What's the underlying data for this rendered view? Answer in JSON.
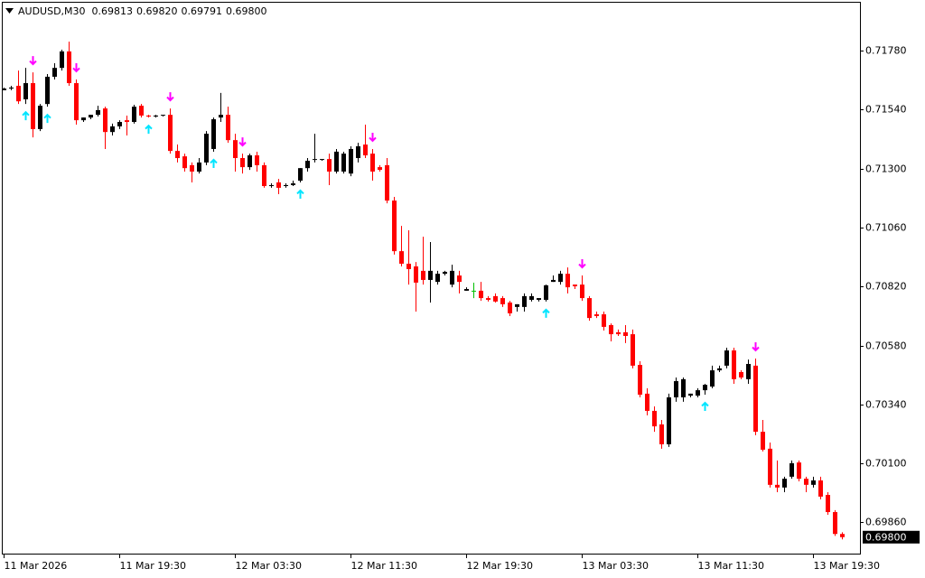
{
  "chart_data": {
    "type": "candlestick",
    "symbol": "AUDUSD,M30",
    "quote_labels": [
      "0.69813",
      "0.69820",
      "0.69791",
      "0.69800"
    ],
    "categories": [
      "11 Mar 2026",
      null,
      null,
      null,
      null,
      null,
      null,
      null,
      null,
      null,
      null,
      null,
      null,
      null,
      null,
      null,
      "11 Mar 19:30",
      null,
      null,
      null,
      null,
      null,
      null,
      null,
      null,
      null,
      null,
      null,
      null,
      null,
      null,
      null,
      "12 Mar 03:30",
      null,
      null,
      null,
      null,
      null,
      null,
      null,
      null,
      null,
      null,
      null,
      null,
      null,
      null,
      null,
      "12 Mar 11:30",
      null,
      null,
      null,
      null,
      null,
      null,
      null,
      null,
      null,
      null,
      null,
      null,
      null,
      null,
      null,
      "12 Mar 19:30",
      null,
      null,
      null,
      null,
      null,
      null,
      null,
      null,
      null,
      null,
      null,
      null,
      null,
      null,
      null,
      "13 Mar 03:30",
      null,
      null,
      null,
      null,
      null,
      null,
      null,
      null,
      null,
      null,
      null,
      null,
      null,
      null,
      null,
      "13 Mar 11:30",
      null,
      null,
      null,
      null,
      null,
      null,
      null,
      null,
      null,
      null,
      null,
      null,
      null,
      null,
      null,
      "13 Mar 19:30",
      null,
      null,
      null,
      null
    ],
    "ohlc": [
      [
        0.71619,
        0.7163,
        0.71619,
        0.71626
      ],
      [
        0.71626,
        0.71637,
        0.71619,
        0.7163
      ],
      [
        0.71637,
        0.71699,
        0.71563,
        0.71574
      ],
      [
        0.71582,
        0.7171,
        0.71563,
        0.71648
      ],
      [
        0.71648,
        0.71692,
        0.71427,
        0.71461
      ],
      [
        0.71461,
        0.71563,
        0.71453,
        0.71556
      ],
      [
        0.71563,
        0.71685,
        0.71552,
        0.71674
      ],
      [
        0.71674,
        0.71729,
        0.71663,
        0.7171
      ],
      [
        0.7171,
        0.71784,
        0.71699,
        0.71777
      ],
      [
        0.71777,
        0.71817,
        0.71637,
        0.71648
      ],
      [
        0.71648,
        0.71663,
        0.71479,
        0.71497
      ],
      [
        0.71497,
        0.71508,
        0.7149,
        0.71508
      ],
      [
        0.71508,
        0.71519,
        0.71501,
        0.71519
      ],
      [
        0.71519,
        0.71556,
        0.71512,
        0.71538
      ],
      [
        0.71545,
        0.71552,
        0.7138,
        0.71449
      ],
      [
        0.71449,
        0.71483,
        0.71435,
        0.71472
      ],
      [
        0.71472,
        0.71497,
        0.71461,
        0.7149
      ],
      [
        0.71497,
        0.71516,
        0.71435,
        0.7149
      ],
      [
        0.7149,
        0.7156,
        0.71483,
        0.71552
      ],
      [
        0.71556,
        0.71563,
        0.71508,
        0.71516
      ],
      [
        0.71516,
        0.71519,
        0.71508,
        0.71512
      ],
      [
        0.71512,
        0.71519,
        0.71508,
        0.71516
      ],
      [
        0.71516,
        0.71519,
        0.71512,
        0.71519
      ],
      [
        0.71519,
        0.71545,
        0.71361,
        0.71372
      ],
      [
        0.71372,
        0.71398,
        0.71325,
        0.71343
      ],
      [
        0.7135,
        0.71361,
        0.71288,
        0.71302
      ],
      [
        0.71314,
        0.71325,
        0.71244,
        0.71288
      ],
      [
        0.71288,
        0.71343,
        0.7128,
        0.71325
      ],
      [
        0.71325,
        0.71453,
        0.71314,
        0.71442
      ],
      [
        0.7138,
        0.71508,
        0.71369,
        0.71501
      ],
      [
        0.71508,
        0.71608,
        0.7149,
        0.71519
      ],
      [
        0.71519,
        0.71552,
        0.71405,
        0.71416
      ],
      [
        0.71416,
        0.71442,
        0.71288,
        0.71343
      ],
      [
        0.71343,
        0.71361,
        0.7128,
        0.71306
      ],
      [
        0.71306,
        0.71361,
        0.71295,
        0.71354
      ],
      [
        0.71354,
        0.71369,
        0.71288,
        0.71314
      ],
      [
        0.71314,
        0.71325,
        0.71222,
        0.71229
      ],
      [
        0.71229,
        0.7124,
        0.71222,
        0.71233
      ],
      [
        0.71244,
        0.71258,
        0.71196,
        0.71222
      ],
      [
        0.71229,
        0.7124,
        0.71222,
        0.71233
      ],
      [
        0.71233,
        0.71251,
        0.71229,
        0.7124
      ],
      [
        0.71251,
        0.71302,
        0.71244,
        0.71302
      ],
      [
        0.71302,
        0.71343,
        0.71288,
        0.71332
      ],
      [
        0.71336,
        0.71442,
        0.71325,
        0.71339
      ],
      [
        0.71336,
        0.71339,
        0.71332,
        0.71339
      ],
      [
        0.71339,
        0.71361,
        0.71233,
        0.71288
      ],
      [
        0.71288,
        0.7138,
        0.7128,
        0.71369
      ],
      [
        0.71288,
        0.71369,
        0.7128,
        0.71361
      ],
      [
        0.7128,
        0.71391,
        0.71269,
        0.7138
      ],
      [
        0.71343,
        0.71405,
        0.71325,
        0.71391
      ],
      [
        0.71398,
        0.71479,
        0.71343,
        0.71354
      ],
      [
        0.71361,
        0.7138,
        0.71251,
        0.71288
      ],
      [
        0.71306,
        0.71314,
        0.71288,
        0.71295
      ],
      [
        0.71314,
        0.71343,
        0.71159,
        0.7117
      ],
      [
        0.7117,
        0.71185,
        0.7095,
        0.70964
      ],
      [
        0.70964,
        0.71067,
        0.70902,
        0.70913
      ],
      [
        0.70913,
        0.71049,
        0.70828,
        0.70891
      ],
      [
        0.70902,
        0.7092,
        0.70718,
        0.70836
      ],
      [
        0.70884,
        0.71023,
        0.70828,
        0.70847
      ],
      [
        0.70847,
        0.71001,
        0.70755,
        0.70884
      ],
      [
        0.70839,
        0.70884,
        0.70828,
        0.70872
      ],
      [
        0.70872,
        0.70884,
        0.70865,
        0.7088
      ],
      [
        0.70828,
        0.70909,
        0.70817,
        0.70884
      ],
      [
        0.70865,
        0.70884,
        0.70792,
        0.70839
      ],
      [
        0.70803,
        0.70817,
        0.70803,
        0.7081
      ],
      [
        0.70803,
        0.70836,
        0.70773,
        0.70803
      ],
      [
        0.70803,
        0.70839,
        0.70762,
        0.70773
      ],
      [
        0.70773,
        0.70781,
        0.70759,
        0.70766
      ],
      [
        0.70781,
        0.70792,
        0.70755,
        0.70759
      ],
      [
        0.70773,
        0.70781,
        0.70737,
        0.70748
      ],
      [
        0.70755,
        0.70762,
        0.707,
        0.70711
      ],
      [
        0.70737,
        0.70748,
        0.70718,
        0.70748
      ],
      [
        0.70737,
        0.70792,
        0.70718,
        0.70781
      ],
      [
        0.70766,
        0.70792,
        0.70759,
        0.70781
      ],
      [
        0.70766,
        0.70773,
        0.70759,
        0.70773
      ],
      [
        0.70766,
        0.70828,
        0.70759,
        0.70825
      ],
      [
        0.70839,
        0.70865,
        0.70839,
        0.70847
      ],
      [
        0.70839,
        0.70884,
        0.70828,
        0.70872
      ],
      [
        0.70872,
        0.70898,
        0.70792,
        0.70817
      ],
      [
        0.70828,
        0.70828,
        0.7081,
        0.70821
      ],
      [
        0.70828,
        0.70865,
        0.70762,
        0.70773
      ],
      [
        0.70773,
        0.70781,
        0.70681,
        0.70692
      ],
      [
        0.70707,
        0.70718,
        0.70692,
        0.707
      ],
      [
        0.70707,
        0.70718,
        0.70641,
        0.70656
      ],
      [
        0.70663,
        0.7067,
        0.70597,
        0.70626
      ],
      [
        0.70634,
        0.70645,
        0.70619,
        0.70626
      ],
      [
        0.70634,
        0.70663,
        0.7059,
        0.70619
      ],
      [
        0.70626,
        0.70645,
        0.70487,
        0.70498
      ],
      [
        0.70501,
        0.70516,
        0.70369,
        0.7038
      ],
      [
        0.70384,
        0.70406,
        0.70296,
        0.70314
      ],
      [
        0.70314,
        0.70332,
        0.70229,
        0.70251
      ],
      [
        0.70259,
        0.70277,
        0.7016,
        0.70178
      ],
      [
        0.70178,
        0.70384,
        0.70167,
        0.70369
      ],
      [
        0.70369,
        0.7045,
        0.70351,
        0.70435
      ],
      [
        0.70369,
        0.7045,
        0.70351,
        0.70443
      ],
      [
        0.70376,
        0.70384,
        0.70369,
        0.70384
      ],
      [
        0.70376,
        0.70406,
        0.70369,
        0.70398
      ],
      [
        0.70398,
        0.70424,
        0.7038,
        0.7042
      ],
      [
        0.70413,
        0.70498,
        0.70406,
        0.70479
      ],
      [
        0.70479,
        0.70498,
        0.70472,
        0.70487
      ],
      [
        0.70498,
        0.70571,
        0.70487,
        0.7056
      ],
      [
        0.7056,
        0.70571,
        0.70424,
        0.70443
      ],
      [
        0.70472,
        0.70479,
        0.70443,
        0.7045
      ],
      [
        0.70443,
        0.70523,
        0.70424,
        0.70505
      ],
      [
        0.70498,
        0.70527,
        0.70215,
        0.70229
      ],
      [
        0.70229,
        0.70277,
        0.70149,
        0.70156
      ],
      [
        0.7016,
        0.70185,
        0.70002,
        0.70013
      ],
      [
        0.70013,
        0.70112,
        0.69983,
        0.70002
      ],
      [
        0.70002,
        0.70046,
        0.69983,
        0.70038
      ],
      [
        0.70046,
        0.70112,
        0.70038,
        0.70101
      ],
      [
        0.70104,
        0.70112,
        0.70027,
        0.70038
      ],
      [
        0.70038,
        0.70046,
        0.69983,
        0.70013
      ],
      [
        0.70013,
        0.70046,
        0.70002,
        0.70031
      ],
      [
        0.70031,
        0.70046,
        0.69954,
        0.69965
      ],
      [
        0.69972,
        0.69983,
        0.69891,
        0.69902
      ],
      [
        0.69902,
        0.6991,
        0.69805,
        0.69813
      ],
      [
        0.69813,
        0.6982,
        0.69791,
        0.698
      ]
    ],
    "up_color": "#000000",
    "down_color": "#ff0000",
    "doji_color": "#00c000",
    "sell_signals": [
      4,
      10,
      23,
      33,
      51,
      80,
      104
    ],
    "buy_signals": [
      3,
      6,
      20,
      29,
      41,
      75,
      97
    ],
    "sell_signal_color": "#ff00ff",
    "buy_signal_color": "#00e5ff",
    "ylim": [
      0.69733,
      0.71979
    ],
    "yticks": [
      {
        "value": 0.7178,
        "label": "0.71780"
      },
      {
        "value": 0.7154,
        "label": "0.71540"
      },
      {
        "value": 0.713,
        "label": "0.71300"
      },
      {
        "value": 0.7106,
        "label": "0.71060"
      },
      {
        "value": 0.7082,
        "label": "0.70820"
      },
      {
        "value": 0.7058,
        "label": "0.70580"
      },
      {
        "value": 0.7034,
        "label": "0.70340"
      },
      {
        "value": 0.701,
        "label": "0.70100"
      },
      {
        "value": 0.6986,
        "label": "0.69860"
      }
    ],
    "current_price": {
      "value": 0.698,
      "label": "0.69800"
    },
    "grid": false
  }
}
